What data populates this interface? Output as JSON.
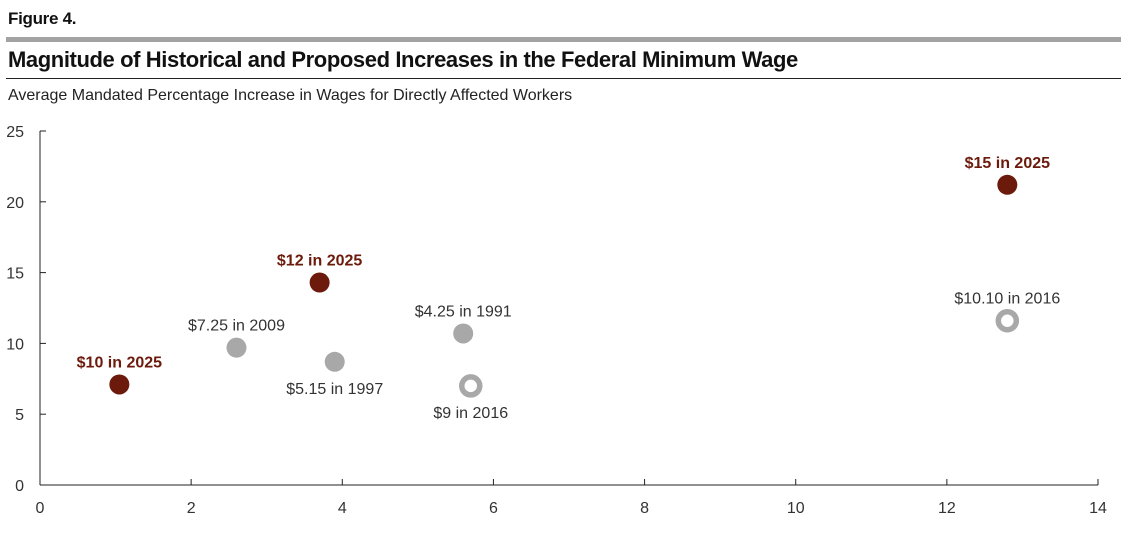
{
  "header": {
    "figure_label": "Figure 4.",
    "title": "Magnitude of Historical and Proposed Increases in the Federal Minimum Wage",
    "subtitle": "Average Mandated Percentage Increase in Wages for Directly Affected Workers"
  },
  "colors": {
    "proposed": "#6b1a0b",
    "historical": "#a8a8a8",
    "hollow_ring": "#a8a8a8",
    "rule": "#a3a3a3"
  },
  "chart_data": {
    "type": "scatter",
    "title": "Magnitude of Historical and Proposed Increases in the Federal Minimum Wage",
    "subtitle": "Average Mandated Percentage Increase in Wages for Directly Affected Workers",
    "xlim": [
      0,
      14
    ],
    "ylim": [
      0,
      25
    ],
    "x_ticks": [
      0,
      2,
      4,
      6,
      8,
      10,
      12,
      14
    ],
    "y_ticks": [
      0,
      5,
      10,
      15,
      20,
      25
    ],
    "grid": false,
    "legend": "none",
    "points": [
      {
        "label": "$10 in 2025",
        "x": 1.05,
        "y": 7.1,
        "style": "proposed",
        "label_pos": "above"
      },
      {
        "label": "$12 in 2025",
        "x": 3.7,
        "y": 14.3,
        "style": "proposed",
        "label_pos": "above"
      },
      {
        "label": "$15 in 2025",
        "x": 12.8,
        "y": 21.2,
        "style": "proposed",
        "label_pos": "above"
      },
      {
        "label": "$7.25 in 2009",
        "x": 2.6,
        "y": 9.7,
        "style": "historical",
        "label_pos": "above"
      },
      {
        "label": "$5.15 in 1997",
        "x": 3.9,
        "y": 8.7,
        "style": "historical",
        "label_pos": "below"
      },
      {
        "label": "$4.25 in 1991",
        "x": 5.6,
        "y": 10.7,
        "style": "historical",
        "label_pos": "above"
      },
      {
        "label": "$9 in 2016",
        "x": 5.7,
        "y": 7.0,
        "style": "hollow",
        "label_pos": "below"
      },
      {
        "label": "$10.10 in 2016",
        "x": 12.8,
        "y": 11.6,
        "style": "hollow",
        "label_pos": "above"
      }
    ]
  }
}
